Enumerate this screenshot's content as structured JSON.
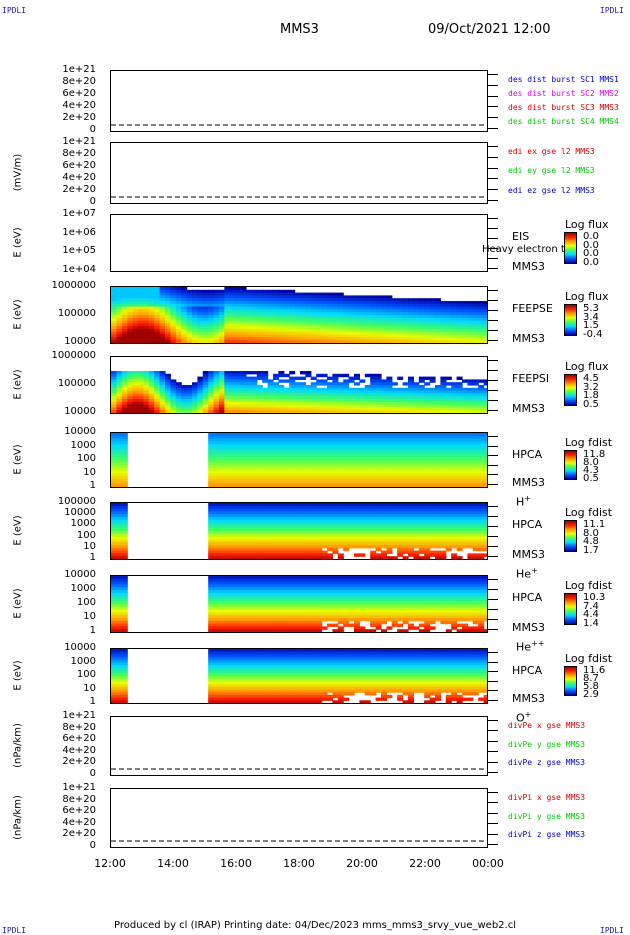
{
  "corners": {
    "tl": "IPDLI",
    "tr": "IPDLI",
    "bl": "IPDLI",
    "br": "IPDLI"
  },
  "header": {
    "spacecraft": "MMS3",
    "datetime": "09/Oct/2021 12:00"
  },
  "xaxis": {
    "ticks": [
      "12:00",
      "14:00",
      "16:00",
      "18:00",
      "20:00",
      "22:00",
      "00:00"
    ]
  },
  "footer": "Produced by cl (IRAP)   Printing date: 04/Dec/2023   mms_mms3_srvy_vue_web2.cl",
  "colors": {
    "red": "#d40000",
    "magenta": "#e000e0",
    "green": "#00c800",
    "blue": "#0000c8"
  },
  "chart_data": [
    {
      "type": "line",
      "name": "panel1",
      "ylabel": "",
      "yticks": [
        "1e+21",
        "8e+20",
        "6e+20",
        "4e+20",
        "2e+20",
        "0"
      ],
      "legend": [
        "des dist burst SC1 MMS1",
        "des dist burst SC2 MMS2",
        "des dist burst SC3 MMS3",
        "des dist burst SC4 MMS4"
      ],
      "legend_colors": [
        "blue",
        "magenta",
        "red",
        "green"
      ],
      "series": []
    },
    {
      "type": "line",
      "name": "panel2",
      "ylabel": "(mV/m)",
      "yticks": [
        "1e+21",
        "8e+20",
        "6e+20",
        "4e+20",
        "2e+20",
        "0"
      ],
      "legend": [
        "edi ex gse l2 MMS3",
        "edi ey gse l2 MMS3",
        "edi ez gse l2 MMS3"
      ],
      "legend_colors": [
        "red",
        "green",
        "blue"
      ],
      "series": []
    },
    {
      "type": "heatmap",
      "name": "EIS",
      "ylabel": "E (eV)",
      "yticks": [
        "1e+07",
        "1e+06",
        "1e+05",
        "1e+04"
      ],
      "labels": [
        "EIS",
        "MMS3"
      ],
      "overlay": "Heavy electron to",
      "colorbar_title": "Log flux",
      "colorbar": [
        "0.0",
        "0.0",
        "0.0",
        "0.0"
      ]
    },
    {
      "type": "heatmap",
      "name": "FEEPSE",
      "ylabel": "E (eV)",
      "yticks": [
        "1000000",
        "100000",
        "10000"
      ],
      "labels": [
        "FEEPSE",
        "MMS3"
      ],
      "colorbar_title": "Log flux",
      "colorbar": [
        "5.3",
        "3.4",
        "1.5",
        "-0.4"
      ]
    },
    {
      "type": "heatmap",
      "name": "FEEPSI",
      "ylabel": "E (eV)",
      "yticks": [
        "1000000",
        "100000",
        "10000"
      ],
      "labels": [
        "FEEPSI",
        "MMS3"
      ],
      "colorbar_title": "Log flux",
      "colorbar": [
        "4.5",
        "3.2",
        "1.8",
        "0.5"
      ]
    },
    {
      "type": "heatmap",
      "name": "HPCA H+",
      "ylabel": "E (eV)",
      "yticks": [
        "10000",
        "1000",
        "100",
        "10",
        "1"
      ],
      "labels": [
        "HPCA",
        "MMS3",
        "H"
      ],
      "sup": "+",
      "colorbar_title": "Log fdist",
      "colorbar": [
        "11.8",
        "8.0",
        "4.3",
        "0.5"
      ]
    },
    {
      "type": "heatmap",
      "name": "HPCA He+",
      "ylabel": "E (eV)",
      "yticks": [
        "100000",
        "10000",
        "1000",
        "100",
        "10",
        "1"
      ],
      "labels": [
        "HPCA",
        "MMS3",
        "He"
      ],
      "sup": "+",
      "colorbar_title": "Log fdist",
      "colorbar": [
        "11.1",
        "8.0",
        "4.8",
        "1.7"
      ]
    },
    {
      "type": "heatmap",
      "name": "HPCA He++",
      "ylabel": "E (eV)",
      "yticks": [
        "10000",
        "1000",
        "100",
        "10",
        "1"
      ],
      "labels": [
        "HPCA",
        "MMS3",
        "He"
      ],
      "sup": "++",
      "colorbar_title": "Log fdist",
      "colorbar": [
        "10.3",
        "7.4",
        "4.4",
        "1.4"
      ]
    },
    {
      "type": "heatmap",
      "name": "HPCA O+",
      "ylabel": "E (eV)",
      "yticks": [
        "10000",
        "1000",
        "100",
        "10",
        "1"
      ],
      "labels": [
        "HPCA",
        "MMS3",
        "O"
      ],
      "sup": "+",
      "colorbar_title": "Log fdist",
      "colorbar": [
        "11.6",
        "8.7",
        "5.8",
        "2.9"
      ]
    },
    {
      "type": "line",
      "name": "panel10",
      "ylabel": "(nPa/km)",
      "yticks": [
        "1e+21",
        "8e+20",
        "6e+20",
        "4e+20",
        "2e+20",
        "0"
      ],
      "legend": [
        "divPe x gse MMS3",
        "divPe y gse MMS3",
        "divPe z gse MMS3"
      ],
      "legend_colors": [
        "red",
        "green",
        "blue"
      ],
      "series": []
    },
    {
      "type": "line",
      "name": "panel11",
      "ylabel": "(nPa/km)",
      "yticks": [
        "1e+21",
        "8e+20",
        "6e+20",
        "4e+20",
        "2e+20",
        "0"
      ],
      "legend": [
        "divPi x gse MMS3",
        "divPi y gse MMS3",
        "divPi z gse MMS3"
      ],
      "legend_colors": [
        "red",
        "green",
        "blue"
      ],
      "series": []
    }
  ]
}
